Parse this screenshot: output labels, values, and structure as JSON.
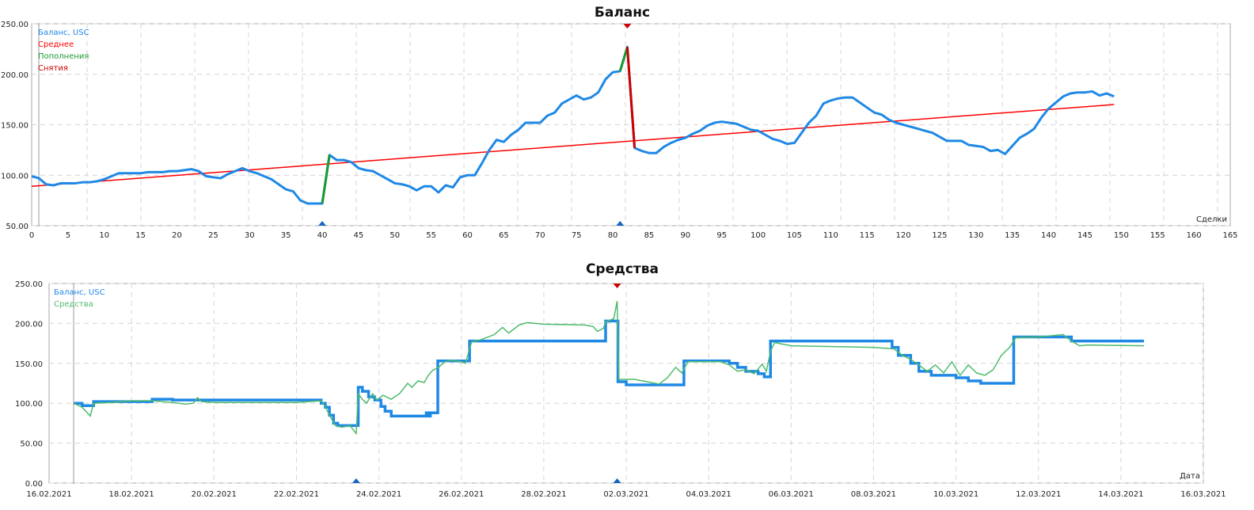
{
  "chart_data": [
    {
      "type": "line",
      "title": "Баланс",
      "xlabel": "Сделки",
      "ylabel": "",
      "xlim": [
        0,
        165
      ],
      "ylim": [
        50,
        250
      ],
      "grid": true,
      "legend_placement": "top-left",
      "xticks": [
        0,
        5,
        10,
        15,
        20,
        25,
        30,
        35,
        40,
        45,
        50,
        55,
        60,
        65,
        70,
        75,
        80,
        85,
        90,
        95,
        100,
        105,
        110,
        115,
        120,
        125,
        130,
        135,
        140,
        145,
        150,
        155,
        160,
        165
      ],
      "yticks": [
        "50.00",
        "100.00",
        "150.00",
        "200.00",
        "250.00"
      ],
      "legend": [
        {
          "label": "Баланс, USC",
          "color": "#1e88e5"
        },
        {
          "label": "Среднее",
          "color": "#ff0000"
        },
        {
          "label": "Пополнения",
          "color": "#1a9a30"
        },
        {
          "label": "Снятия",
          "color": "#cc0000"
        }
      ],
      "balance": [
        99,
        97,
        91,
        90,
        92,
        92,
        92,
        93,
        93,
        94,
        96,
        99,
        102,
        102,
        102,
        102,
        103,
        103,
        103,
        104,
        104,
        105,
        106,
        104,
        99,
        98,
        97,
        101,
        104,
        107,
        104,
        102,
        99,
        96,
        91,
        86,
        84,
        75,
        72,
        72,
        72,
        120,
        115,
        115,
        113,
        107,
        105,
        104,
        100,
        96,
        92,
        91,
        89,
        85,
        89,
        89,
        83,
        90,
        88,
        98,
        100,
        100,
        112,
        125,
        135,
        133,
        140,
        145,
        152,
        152,
        152,
        159,
        162,
        171,
        175,
        179,
        175,
        177,
        182,
        195,
        202,
        203,
        227,
        127,
        124,
        122,
        122,
        128,
        132,
        135,
        137,
        141,
        144,
        149,
        152,
        153,
        152,
        151,
        148,
        145,
        144,
        140,
        136,
        134,
        131,
        132,
        142,
        152,
        159,
        171,
        174,
        176,
        177,
        177,
        172,
        167,
        162,
        160,
        155,
        152,
        150,
        148,
        146,
        144,
        142,
        138,
        134,
        134,
        134,
        130,
        129,
        128,
        124,
        125,
        121,
        129,
        137,
        141,
        146,
        157,
        166,
        172,
        178,
        181,
        182,
        182,
        183,
        179,
        181,
        178
      ],
      "deposits": [
        [
          40,
          41
        ],
        [
          81,
          82
        ]
      ],
      "withdrawals": [
        [
          82,
          83
        ]
      ],
      "average": {
        "from": [
          0,
          89
        ],
        "to": [
          149,
          170
        ]
      },
      "deposit_markers": [
        40,
        81
      ],
      "withdrawal_markers": [
        82
      ]
    },
    {
      "type": "line",
      "title": "Средства",
      "xlabel": "Дата",
      "xlim_days": [
        0,
        28
      ],
      "ylim": [
        0,
        250
      ],
      "grid": true,
      "legend_placement": "top-left",
      "xticks": [
        "16.02.2021",
        "18.02.2021",
        "20.02.2021",
        "22.02.2021",
        "24.02.2021",
        "26.02.2021",
        "28.02.2021",
        "02.03.2021",
        "04.03.2021",
        "06.03.2021",
        "08.03.2021",
        "10.03.2021",
        "12.03.2021",
        "14.03.2021",
        "16.03.2021"
      ],
      "yticks": [
        "0.00",
        "50.00",
        "100.00",
        "150.00",
        "200.00",
        "250.00"
      ],
      "legend": [
        {
          "label": "Баланс, USC",
          "color": "#1e88e5"
        },
        {
          "label": "Средства",
          "color": "#4cbb6c"
        }
      ],
      "balance_steps": [
        [
          0.6,
          100
        ],
        [
          0.8,
          97
        ],
        [
          1.08,
          102
        ],
        [
          2.5,
          105
        ],
        [
          3.0,
          104
        ],
        [
          6.6,
          100
        ],
        [
          6.7,
          95
        ],
        [
          6.8,
          85
        ],
        [
          6.9,
          75
        ],
        [
          7.0,
          72
        ],
        [
          7.5,
          120
        ],
        [
          7.6,
          115
        ],
        [
          7.75,
          108
        ],
        [
          7.9,
          104
        ],
        [
          8.05,
          96
        ],
        [
          8.15,
          90
        ],
        [
          8.3,
          84
        ],
        [
          9.15,
          88
        ],
        [
          9.2,
          84
        ],
        [
          9.25,
          88
        ],
        [
          9.43,
          153
        ],
        [
          10.2,
          178
        ],
        [
          13.5,
          203
        ],
        [
          13.8,
          127
        ],
        [
          14.0,
          123
        ],
        [
          15.4,
          153
        ],
        [
          16.5,
          150
        ],
        [
          16.7,
          145
        ],
        [
          16.9,
          140
        ],
        [
          17.2,
          137
        ],
        [
          17.35,
          133
        ],
        [
          17.5,
          178
        ],
        [
          20.45,
          170
        ],
        [
          20.6,
          160
        ],
        [
          20.9,
          150
        ],
        [
          21.1,
          140
        ],
        [
          21.4,
          135
        ],
        [
          22.0,
          132
        ],
        [
          22.3,
          128
        ],
        [
          22.6,
          125
        ],
        [
          23.4,
          183
        ],
        [
          24.8,
          178
        ],
        [
          26.56,
          178
        ]
      ],
      "equity": [
        [
          0.6,
          100
        ],
        [
          0.8,
          95
        ],
        [
          1.0,
          84
        ],
        [
          1.08,
          100
        ],
        [
          1.5,
          101
        ],
        [
          2,
          103
        ],
        [
          2.5,
          103
        ],
        [
          3,
          101
        ],
        [
          3.3,
          99
        ],
        [
          3.5,
          100
        ],
        [
          3.6,
          107
        ],
        [
          3.7,
          102
        ],
        [
          4,
          101
        ],
        [
          5,
          101
        ],
        [
          6,
          101
        ],
        [
          6.6,
          103
        ],
        [
          6.7,
          96
        ],
        [
          6.8,
          85
        ],
        [
          6.95,
          72
        ],
        [
          7.1,
          70
        ],
        [
          7.3,
          72
        ],
        [
          7.45,
          62
        ],
        [
          7.5,
          112
        ],
        [
          7.6,
          105
        ],
        [
          7.7,
          100
        ],
        [
          7.85,
          112
        ],
        [
          7.95,
          104
        ],
        [
          8.1,
          110
        ],
        [
          8.3,
          105
        ],
        [
          8.5,
          112
        ],
        [
          8.7,
          125
        ],
        [
          8.8,
          120
        ],
        [
          8.95,
          128
        ],
        [
          9.1,
          126
        ],
        [
          9.2,
          135
        ],
        [
          9.3,
          141
        ],
        [
          9.45,
          145
        ],
        [
          9.6,
          152
        ],
        [
          9.8,
          154
        ],
        [
          10.0,
          152
        ],
        [
          10.1,
          150
        ],
        [
          10.25,
          177
        ],
        [
          10.5,
          180
        ],
        [
          10.8,
          186
        ],
        [
          11.0,
          195
        ],
        [
          11.15,
          188
        ],
        [
          11.4,
          198
        ],
        [
          11.6,
          201
        ],
        [
          12,
          199
        ],
        [
          13,
          198
        ],
        [
          13.2,
          196
        ],
        [
          13.3,
          190
        ],
        [
          13.45,
          194
        ],
        [
          13.5,
          202
        ],
        [
          13.7,
          206
        ],
        [
          13.78,
          228
        ],
        [
          13.82,
          130
        ],
        [
          14.2,
          130
        ],
        [
          14.5,
          127
        ],
        [
          14.8,
          124
        ],
        [
          15.0,
          132
        ],
        [
          15.2,
          145
        ],
        [
          15.35,
          138
        ],
        [
          15.5,
          152
        ],
        [
          16.3,
          152
        ],
        [
          16.5,
          148
        ],
        [
          16.7,
          140
        ],
        [
          16.9,
          142
        ],
        [
          17.1,
          137
        ],
        [
          17.3,
          149
        ],
        [
          17.4,
          140
        ],
        [
          17.5,
          165
        ],
        [
          17.6,
          176
        ],
        [
          18,
          172
        ],
        [
          19,
          171
        ],
        [
          20,
          170
        ],
        [
          20.5,
          168
        ],
        [
          20.7,
          160
        ],
        [
          20.9,
          155
        ],
        [
          21.1,
          148
        ],
        [
          21.3,
          140
        ],
        [
          21.5,
          148
        ],
        [
          21.7,
          138
        ],
        [
          21.9,
          152
        ],
        [
          22.1,
          135
        ],
        [
          22.3,
          148
        ],
        [
          22.5,
          138
        ],
        [
          22.7,
          135
        ],
        [
          22.9,
          142
        ],
        [
          23.1,
          160
        ],
        [
          23.3,
          170
        ],
        [
          23.45,
          182
        ],
        [
          24.0,
          183
        ],
        [
          24.6,
          186
        ],
        [
          24.8,
          178
        ],
        [
          25.0,
          172
        ],
        [
          25.2,
          173
        ],
        [
          26.56,
          172
        ]
      ],
      "deposit_markers": [
        7.45,
        13.78
      ],
      "withdrawal_markers": [
        13.78
      ]
    }
  ]
}
